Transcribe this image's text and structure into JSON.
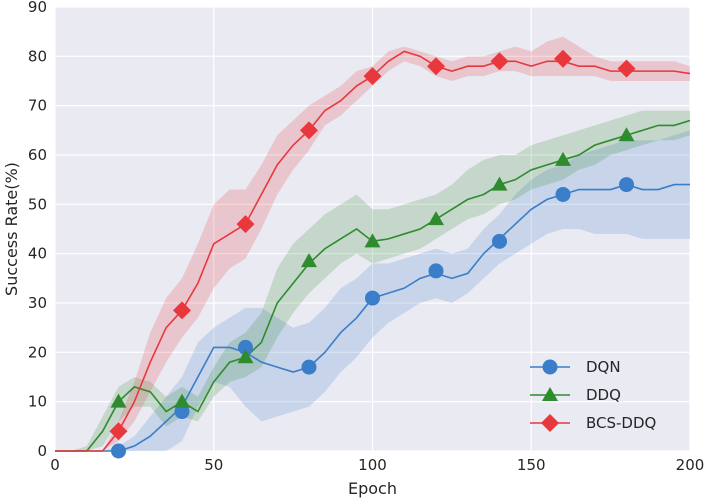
{
  "chart_data": {
    "type": "line",
    "title": "",
    "xlabel": "Epoch",
    "ylabel": "Success Rate(%)",
    "xlim": [
      0,
      200
    ],
    "ylim": [
      0,
      90
    ],
    "xticks": [
      0,
      50,
      100,
      150,
      200
    ],
    "yticks": [
      0,
      10,
      20,
      30,
      40,
      50,
      60,
      70,
      80,
      90
    ],
    "grid": true,
    "legend_position": "bottom-right",
    "x": [
      0,
      5,
      10,
      15,
      20,
      25,
      30,
      35,
      40,
      45,
      50,
      55,
      60,
      65,
      70,
      75,
      80,
      85,
      90,
      95,
      100,
      105,
      110,
      115,
      120,
      125,
      130,
      135,
      140,
      145,
      150,
      155,
      160,
      165,
      170,
      175,
      180,
      185,
      190,
      195,
      200
    ],
    "series": [
      {
        "name": "DQN",
        "color": "#3a7dc9",
        "marker": "circle",
        "values": [
          0,
          0,
          0,
          0,
          0,
          1,
          3,
          6,
          9,
          15,
          21,
          21,
          20,
          18,
          17,
          16,
          17,
          20,
          24,
          27,
          31,
          32,
          33,
          35,
          36,
          35,
          36,
          40,
          43,
          46,
          49,
          51,
          52,
          53,
          53,
          53,
          54,
          53,
          53,
          54,
          54
        ],
        "lower": [
          0,
          0,
          0,
          0,
          0,
          0,
          0,
          0,
          2,
          9,
          14,
          13,
          9,
          6,
          7,
          8,
          9,
          12,
          16,
          19,
          23,
          26,
          28,
          30,
          31,
          30,
          32,
          35,
          38,
          40,
          42,
          44,
          45,
          45,
          44,
          44,
          44,
          43,
          43,
          43,
          43
        ],
        "upper": [
          0,
          0,
          0,
          0,
          1,
          3,
          7,
          11,
          15,
          22,
          25,
          27,
          29,
          29,
          27,
          25,
          26,
          29,
          33,
          35,
          38,
          38,
          39,
          40,
          41,
          40,
          41,
          45,
          48,
          52,
          55,
          57,
          58,
          60,
          61,
          62,
          63,
          63,
          63,
          64,
          65
        ],
        "markers_x": [
          20,
          40,
          60,
          80,
          100,
          120,
          140,
          160,
          180
        ],
        "markers_y": [
          0,
          8,
          21,
          17,
          31,
          36.5,
          42.5,
          52,
          54
        ]
      },
      {
        "name": "DDQ",
        "color": "#2e8b2e",
        "marker": "triangle",
        "values": [
          0,
          0,
          0,
          4,
          10,
          13,
          12,
          8,
          10,
          8,
          14,
          18,
          19,
          22,
          30,
          34,
          38,
          41,
          43,
          45,
          42.5,
          43,
          44,
          45,
          47,
          49,
          51,
          52,
          54,
          55,
          57,
          58,
          59,
          60,
          62,
          63,
          64,
          65,
          66,
          66,
          67
        ],
        "lower": [
          0,
          0,
          0,
          1,
          6,
          9,
          9,
          5,
          7,
          6,
          11,
          14,
          15,
          17,
          23,
          28,
          32,
          35,
          38,
          40,
          38,
          39,
          40,
          41,
          43,
          45,
          47,
          48,
          50,
          51,
          53,
          54,
          55,
          57,
          58,
          60,
          61,
          62,
          63,
          63,
          64
        ],
        "upper": [
          0,
          0,
          1,
          7,
          13,
          15,
          14,
          11,
          13,
          11,
          17,
          22,
          24,
          28,
          37,
          42,
          45,
          48,
          50,
          52,
          49,
          49,
          50,
          51,
          52,
          54,
          57,
          59,
          60,
          60,
          62,
          63,
          64,
          65,
          66,
          67,
          68,
          69,
          69,
          69,
          69
        ],
        "markers_x": [
          20,
          40,
          60,
          80,
          100,
          120,
          140,
          160,
          180
        ],
        "markers_y": [
          10,
          10,
          19,
          38.5,
          42.5,
          47,
          54,
          59,
          64
        ]
      },
      {
        "name": "BCS-DDQ",
        "color": "#e8383d",
        "marker": "diamond",
        "values": [
          0,
          0,
          0,
          0,
          4,
          10,
          18,
          25,
          28.5,
          34,
          42,
          44,
          46,
          52,
          58,
          62,
          65,
          69,
          71,
          74,
          76,
          79,
          81,
          80,
          78,
          77,
          78,
          78,
          79,
          79,
          78,
          79,
          79,
          78,
          78,
          77,
          77,
          77,
          77,
          77,
          76.5
        ],
        "lower": [
          0,
          0,
          0,
          0,
          2,
          6,
          12,
          18,
          23,
          27,
          33,
          37,
          39,
          45,
          52,
          57,
          61,
          66,
          68,
          71,
          74,
          77,
          79,
          78,
          76,
          75,
          76,
          76,
          77,
          77,
          76,
          76,
          76,
          76,
          76,
          75,
          75,
          75,
          75,
          75,
          75
        ],
        "upper": [
          0,
          0,
          0,
          0,
          6,
          14,
          24,
          31,
          35,
          42,
          50,
          53,
          53,
          58,
          64,
          67,
          70,
          72,
          74,
          77,
          78,
          81,
          82,
          81,
          80,
          79,
          80,
          80,
          81,
          82,
          81,
          83,
          84,
          82,
          80,
          79,
          79,
          79,
          79,
          79,
          78
        ],
        "markers_x": [
          20,
          40,
          60,
          80,
          100,
          120,
          140,
          160,
          180
        ],
        "markers_y": [
          4,
          28.5,
          46,
          65,
          76,
          78,
          79,
          79.5,
          77.5
        ]
      }
    ]
  }
}
